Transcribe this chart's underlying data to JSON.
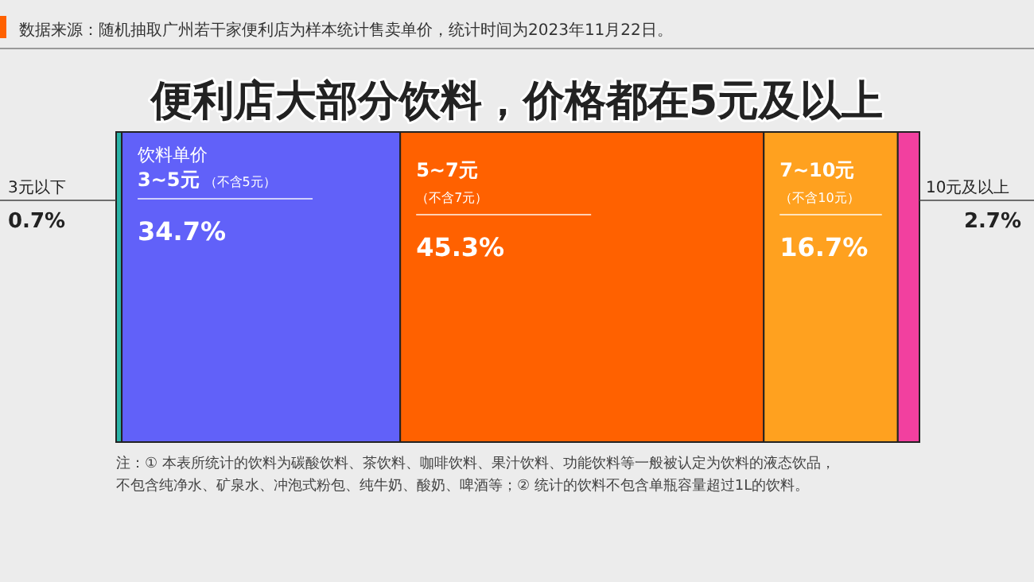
{
  "chart_data": {
    "type": "bar",
    "orientation": "horizontal",
    "stacked": true,
    "title": "便利店大部分饮料，价格都在5元及以上",
    "categories": [
      null
    ],
    "series": [
      {
        "name": "3元以下",
        "color": "#2bb3a6",
        "values": [
          0.7
        ],
        "value_labels": [
          "0.7%"
        ]
      },
      {
        "name": "3~5元（不含5元）",
        "color": "#6161f9",
        "values": [
          34.7
        ],
        "value_labels": [
          "34.7%"
        ]
      },
      {
        "name": "5~7元（不含7元）",
        "color": "#ff6100",
        "values": [
          45.3
        ],
        "value_labels": [
          "45.3%"
        ]
      },
      {
        "name": "7~10元（不含10元）",
        "color": "#ffa11f",
        "values": [
          16.7
        ],
        "value_labels": [
          "16.7%"
        ]
      },
      {
        "name": "10元及以上",
        "color": "#f2409f",
        "values": [
          2.7
        ],
        "value_labels": [
          "2.7%"
        ]
      }
    ],
    "annotations": [
      "数据来源：随机抽取广州若干家便利店为样本统计售卖单价，统计时间为2023年11月22日。",
      "饮料单价",
      "注：① 本表所统计的饮料为碳酸饮料、茶饮料、咖啡饮料、果汁饮料、功能饮料等一般被认定为饮料的液态饮品，不包含纯净水、矿泉水、冲泡式粉包、纯牛奶、酸奶、啤酒等；② 统计的饮料不包含单瓶容量超过1L的饮料。"
    ]
  }
}
